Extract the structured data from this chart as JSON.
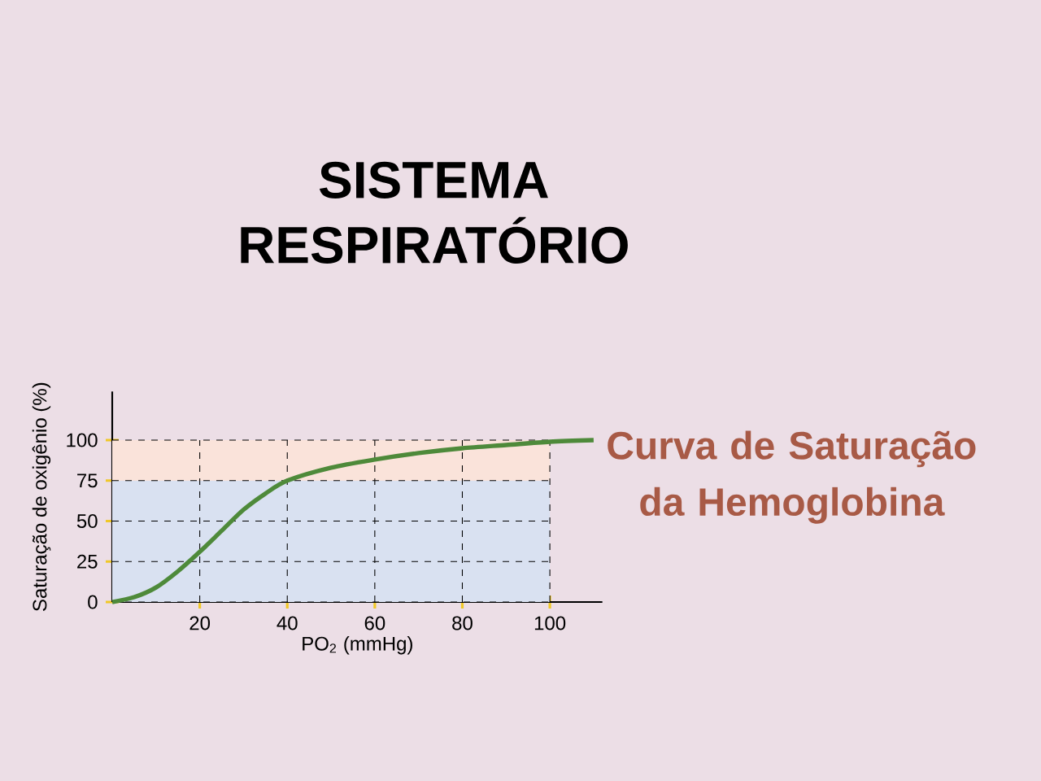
{
  "chart_data": {
    "type": "line",
    "title": "SISTEMA RESPIRATÓRIO",
    "subtitle": "Curva de Saturação da Hemoglobina",
    "xlabel": "PO$_{2}$ (mmHg)",
    "ylabel": "Saturação de oxigênio (%)",
    "x": [
      0,
      5,
      10,
      15,
      20,
      25,
      30,
      35,
      40,
      50,
      60,
      70,
      80,
      90,
      100,
      110
    ],
    "series": [
      {
        "color": "#4e8a3a",
        "values": [
          0,
          3,
          9,
          19,
          31,
          44,
          57,
          67,
          75,
          83,
          88,
          92,
          95,
          97,
          99,
          100
        ]
      }
    ],
    "xlim": [
      0,
      112
    ],
    "ylim": [
      0,
      130
    ],
    "xticks": [
      20,
      40,
      60,
      80,
      100
    ],
    "yticks": [
      0,
      25,
      50,
      75,
      100
    ],
    "grid": true,
    "marker": "none",
    "line_style": "solid",
    "bands": [
      {
        "axis": "y",
        "from": 0,
        "to": 75,
        "color": "#d9e1f1"
      },
      {
        "axis": "y",
        "from": 75,
        "to": 100,
        "color": "#fae3da"
      }
    ]
  }
}
